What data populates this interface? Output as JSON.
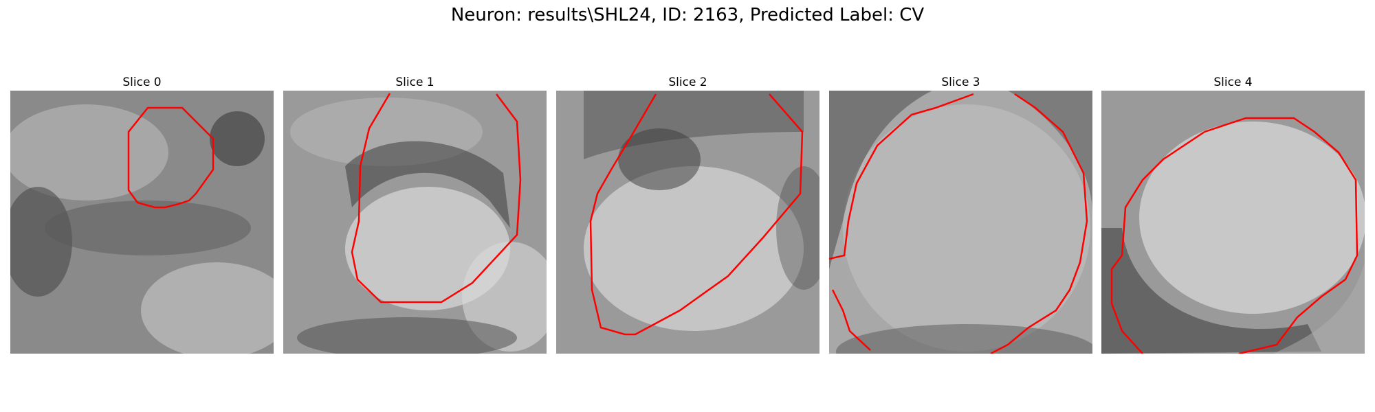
{
  "figure": {
    "title": "Neuron: results\\SHL24, ID: 2163, Predicted Label: CV"
  },
  "slices": [
    {
      "label": "Slice 0"
    },
    {
      "label": "Slice 1"
    },
    {
      "label": "Slice 2"
    },
    {
      "label": "Slice 3"
    },
    {
      "label": "Slice 4"
    }
  ],
  "colors": {
    "contour": "#ff0000"
  }
}
